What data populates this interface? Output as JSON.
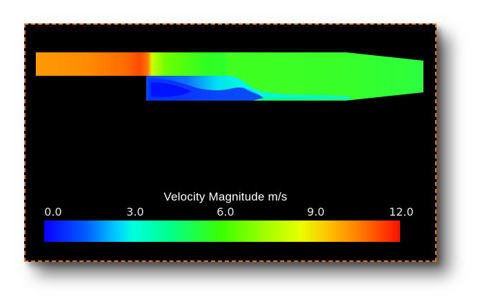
{
  "legend": {
    "title": "Velocity Magnitude m/s",
    "ticks": [
      "0.0",
      "3.0",
      "6.0",
      "9.0",
      "12.0"
    ],
    "range": [
      0,
      12
    ]
  },
  "colors": {
    "border": "#e8731f",
    "background": "#000000"
  }
}
